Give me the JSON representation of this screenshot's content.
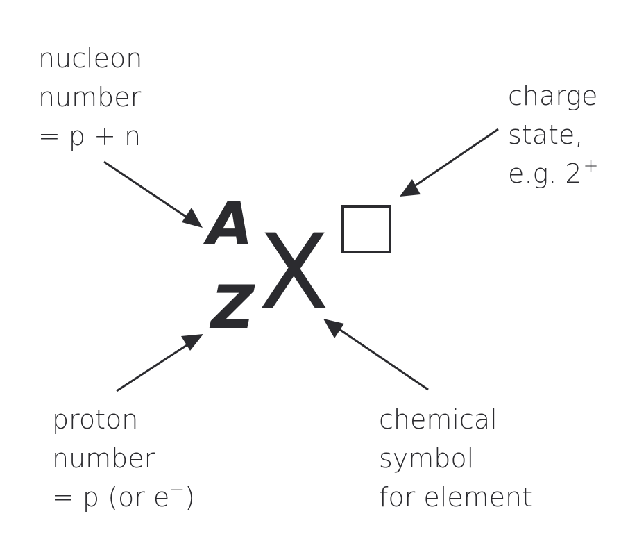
{
  "labels": {
    "nucleon": {
      "line1": "nucleon",
      "line2": "number",
      "line3": "= p + n"
    },
    "charge": {
      "line1": "charge",
      "line2": "state,",
      "line3_text": "e.g. 2",
      "line3_sup": "+"
    },
    "proton": {
      "line1": "proton",
      "line2": "number",
      "line3_pre": "= p (or e",
      "line3_sup": "−",
      "line3_post": ")"
    },
    "symbol": {
      "line1": "chemical",
      "line2": "symbol",
      "line3": "for element"
    }
  },
  "notation": {
    "mass_symbol": "A",
    "atomic_symbol": "Z",
    "element_symbol": "X"
  },
  "colors": {
    "text": "#2b2b2f",
    "background": "#ffffff",
    "superscript_minus": "#8a8a8a"
  }
}
